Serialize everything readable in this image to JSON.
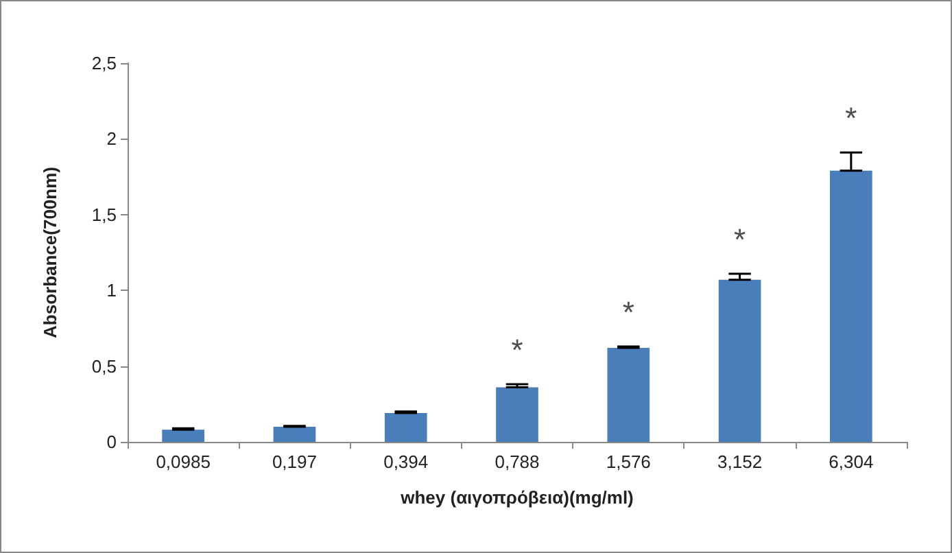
{
  "chart_data": {
    "type": "bar",
    "xlabel": "whey (αιγοπρόβεια)(mg/ml)",
    "ylabel": "Absorbance(700nm)",
    "categories": [
      "0,0985",
      "0,197",
      "0,394",
      "0,788",
      "1,576",
      "3,152",
      "6,304"
    ],
    "values": [
      0.08,
      0.1,
      0.19,
      0.36,
      0.62,
      1.07,
      1.79
    ],
    "errors": [
      [
        0.08,
        0.09
      ],
      [
        0.1,
        0.105
      ],
      [
        0.19,
        0.2
      ],
      [
        0.36,
        0.38
      ],
      [
        0.62,
        0.63
      ],
      [
        1.07,
        1.11
      ],
      [
        1.79,
        1.91
      ]
    ],
    "color": "#4a7ebb",
    "ylim": [
      0,
      2.5
    ],
    "yticks": [
      {
        "value": 0,
        "label": "0"
      },
      {
        "value": 0.5,
        "label": "0,5"
      },
      {
        "value": 1,
        "label": "1"
      },
      {
        "value": 1.5,
        "label": "1,5"
      },
      {
        "value": 2,
        "label": "2"
      },
      {
        "value": 2.5,
        "label": "2,5"
      }
    ],
    "grid": false,
    "annotations": [
      {
        "text": "*",
        "x": "0,788",
        "y": 0.36
      },
      {
        "text": "*",
        "x": "1,576",
        "y": 0.62
      },
      {
        "text": "*",
        "x": "3,152",
        "y": 1.07
      },
      {
        "text": "*",
        "x": "6,304",
        "y": 1.79
      }
    ]
  }
}
